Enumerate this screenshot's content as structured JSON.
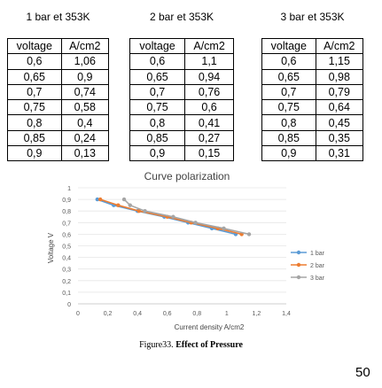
{
  "tables": [
    {
      "title": "1 bar et 353K",
      "headers": [
        "voltage",
        "A/cm2"
      ],
      "rows": [
        [
          "0,6",
          "1,06"
        ],
        [
          "0,65",
          "0,9"
        ],
        [
          "0,7",
          "0,74"
        ],
        [
          "0,75",
          "0,58"
        ],
        [
          "0,8",
          "0,4"
        ],
        [
          "0,85",
          "0,24"
        ],
        [
          "0,9",
          "0,13"
        ]
      ]
    },
    {
      "title": "2 bar et 353K",
      "headers": [
        "voltage",
        "A/cm2"
      ],
      "rows": [
        [
          "0,6",
          "1,1"
        ],
        [
          "0,65",
          "0,94"
        ],
        [
          "0,7",
          "0,76"
        ],
        [
          "0,75",
          "0,6"
        ],
        [
          "0,8",
          "0,41"
        ],
        [
          "0,85",
          "0,27"
        ],
        [
          "0,9",
          "0,15"
        ]
      ]
    },
    {
      "title": "3 bar et 353K",
      "headers": [
        "voltage",
        "A/cm2"
      ],
      "rows": [
        [
          "0,6",
          "1,15"
        ],
        [
          "0,65",
          "0,98"
        ],
        [
          "0,7",
          "0,79"
        ],
        [
          "0,75",
          "0,64"
        ],
        [
          "0,8",
          "0,45"
        ],
        [
          "0,85",
          "0,35"
        ],
        [
          "0,9",
          "0,31"
        ]
      ]
    }
  ],
  "chart_data": {
    "type": "line",
    "title": "Curve polarization",
    "xlabel": "Current density A/cm2",
    "ylabel": "Voltage V",
    "xlim": [
      0,
      1.4
    ],
    "ylim": [
      0,
      1
    ],
    "xticks": [
      "0",
      "0,2",
      "0,4",
      "0,6",
      "0,8",
      "1",
      "1,2",
      "1,4"
    ],
    "yticks": [
      "0",
      "0,1",
      "0,2",
      "0,3",
      "0,4",
      "0,5",
      "0,6",
      "0,7",
      "0,8",
      "0,9",
      "1"
    ],
    "legend_position": "right",
    "grid": true,
    "series": [
      {
        "name": "1 bar",
        "color": "#5b9bd5",
        "x": [
          1.06,
          0.9,
          0.74,
          0.58,
          0.4,
          0.24,
          0.13
        ],
        "y": [
          0.6,
          0.65,
          0.7,
          0.75,
          0.8,
          0.85,
          0.9
        ]
      },
      {
        "name": "2 bar",
        "color": "#ed7d31",
        "x": [
          1.1,
          0.94,
          0.76,
          0.6,
          0.41,
          0.27,
          0.15
        ],
        "y": [
          0.6,
          0.65,
          0.7,
          0.75,
          0.8,
          0.85,
          0.9
        ]
      },
      {
        "name": "3 bar",
        "color": "#a5a5a5",
        "x": [
          1.15,
          0.98,
          0.79,
          0.64,
          0.45,
          0.35,
          0.31
        ],
        "y": [
          0.6,
          0.65,
          0.7,
          0.75,
          0.8,
          0.85,
          0.9
        ]
      }
    ]
  },
  "caption": {
    "prefix": "Figure33.",
    "bold": "Effect of Pressure"
  },
  "page_number": "50"
}
